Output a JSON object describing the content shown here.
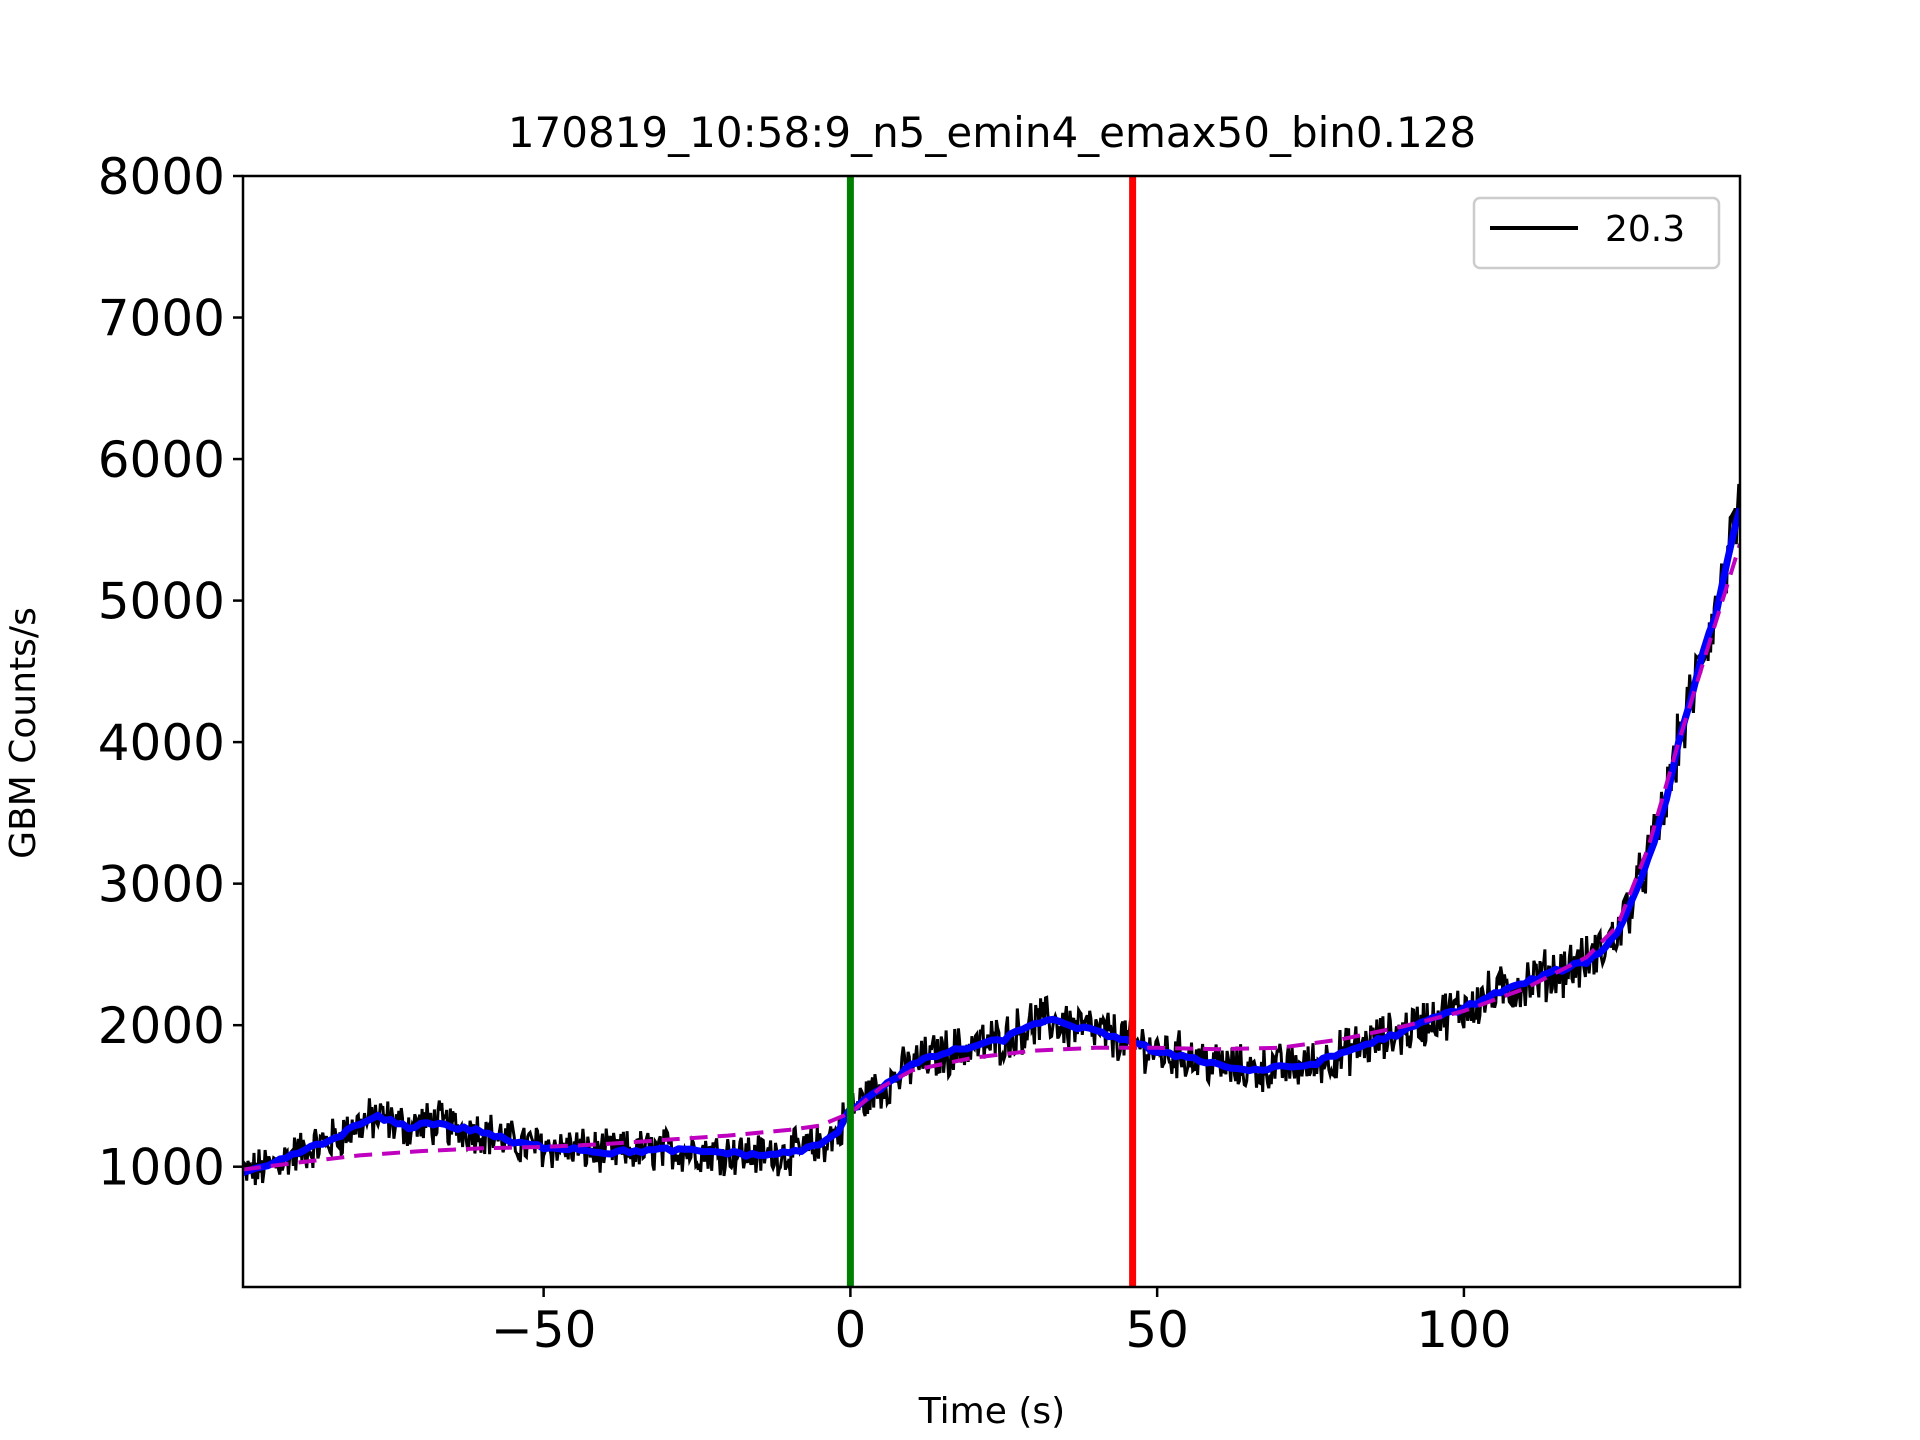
{
  "chart_data": {
    "type": "line",
    "title": "170819_10:58:9_n5_emin4_emax50_bin0.128",
    "xlabel": "Time (s)",
    "ylabel": "GBM Counts/s",
    "xlim": [
      -99,
      145
    ],
    "ylim": [
      150,
      8000
    ],
    "xticks": [
      -50,
      0,
      50,
      100
    ],
    "xtick_labels": [
      "−50",
      "0",
      "50",
      "100"
    ],
    "yticks": [
      1000,
      2000,
      3000,
      4000,
      5000,
      6000,
      7000,
      8000
    ],
    "ytick_labels": [
      "1000",
      "2000",
      "3000",
      "4000",
      "5000",
      "6000",
      "7000",
      "8000"
    ],
    "grid": false,
    "legend": {
      "position": "top-right",
      "entries": [
        {
          "label": "20.3",
          "color": "#000000"
        }
      ]
    },
    "series": [
      {
        "name": "20.3",
        "style": "noisy-line",
        "color": "#000000",
        "x": [
          -99,
          -95,
          -90,
          -85,
          -80,
          -77,
          -75,
          -72,
          -70,
          -67,
          -65,
          -60,
          -55,
          -50,
          -45,
          -40,
          -35,
          -30,
          -25,
          -20,
          -15,
          -10,
          -5,
          -2,
          0,
          3,
          5,
          8,
          10,
          15,
          20,
          25,
          28,
          30,
          33,
          35,
          38,
          40,
          42,
          45,
          46,
          48,
          50,
          55,
          60,
          65,
          70,
          75,
          80,
          85,
          90,
          95,
          100,
          105,
          110,
          115,
          120,
          123,
          125,
          127,
          129,
          131,
          133,
          135,
          137,
          139,
          141,
          143,
          145
        ],
        "y": [
          950,
          1000,
          1100,
          1180,
          1300,
          1350,
          1320,
          1280,
          1300,
          1310,
          1280,
          1250,
          1170,
          1140,
          1130,
          1100,
          1110,
          1120,
          1110,
          1100,
          1080,
          1100,
          1150,
          1250,
          1400,
          1500,
          1560,
          1650,
          1720,
          1800,
          1850,
          1900,
          1970,
          2020,
          2030,
          2000,
          1980,
          1950,
          1930,
          1900,
          1880,
          1850,
          1800,
          1780,
          1720,
          1680,
          1700,
          1720,
          1800,
          1880,
          1950,
          2050,
          2120,
          2220,
          2300,
          2380,
          2450,
          2550,
          2650,
          2850,
          3050,
          3300,
          3600,
          4000,
          4300,
          4650,
          4900,
          5300,
          5650
        ],
        "noise_amplitude": 110
      },
      {
        "name": "",
        "style": "solid-thick",
        "color": "#0000ff",
        "x": [
          -99,
          -95,
          -90,
          -85,
          -80,
          -77,
          -75,
          -72,
          -70,
          -67,
          -65,
          -60,
          -55,
          -50,
          -45,
          -40,
          -35,
          -30,
          -25,
          -20,
          -15,
          -10,
          -5,
          -2,
          0,
          3,
          5,
          8,
          10,
          15,
          20,
          25,
          28,
          30,
          33,
          35,
          38,
          40,
          42,
          45,
          46,
          48,
          50,
          55,
          60,
          65,
          70,
          75,
          80,
          85,
          90,
          95,
          100,
          105,
          110,
          115,
          120,
          123,
          125,
          127,
          129,
          131,
          133,
          135,
          137,
          139,
          141,
          143,
          145
        ],
        "y": [
          950,
          1000,
          1100,
          1180,
          1300,
          1350,
          1320,
          1280,
          1300,
          1310,
          1280,
          1250,
          1170,
          1140,
          1130,
          1100,
          1110,
          1120,
          1110,
          1100,
          1080,
          1100,
          1150,
          1250,
          1400,
          1500,
          1560,
          1650,
          1720,
          1800,
          1850,
          1900,
          1970,
          2020,
          2030,
          2000,
          1980,
          1950,
          1930,
          1900,
          1880,
          1850,
          1800,
          1780,
          1720,
          1680,
          1700,
          1720,
          1800,
          1880,
          1950,
          2050,
          2120,
          2220,
          2300,
          2380,
          2450,
          2550,
          2650,
          2850,
          3050,
          3300,
          3600,
          4000,
          4300,
          4650,
          4900,
          5300,
          5650
        ]
      },
      {
        "name": "",
        "style": "dashed",
        "color": "#bf00bf",
        "x": [
          -99,
          -90,
          -80,
          -70,
          -60,
          -50,
          -40,
          -30,
          -20,
          -10,
          -5,
          0,
          5,
          10,
          20,
          30,
          40,
          50,
          60,
          70,
          80,
          90,
          100,
          110,
          120,
          125,
          130,
          135,
          140,
          145
        ],
        "y": [
          980,
          1030,
          1080,
          1110,
          1130,
          1140,
          1160,
          1190,
          1220,
          1260,
          1290,
          1380,
          1560,
          1680,
          1770,
          1820,
          1840,
          1840,
          1830,
          1840,
          1900,
          1990,
          2100,
          2260,
          2480,
          2700,
          3250,
          4000,
          4700,
          5400
        ]
      }
    ],
    "vertical_lines": [
      {
        "x": 0,
        "color": "#008000"
      },
      {
        "x": 46,
        "color": "#ff0000"
      }
    ]
  }
}
